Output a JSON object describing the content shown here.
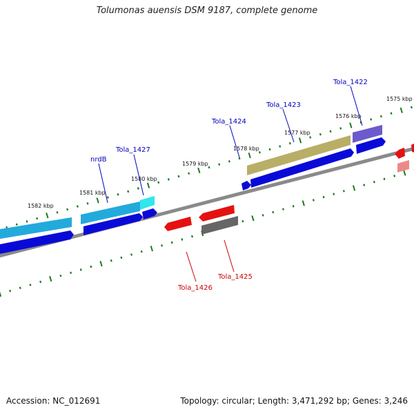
{
  "title": "Tolumonas auensis DSM 9187, complete genome",
  "footer": {
    "accession": "Accession: NC_012691",
    "summary": "Topology: circular; Length: 3,471,292 bp; Genes: 3,246"
  },
  "colors": {
    "forward_label": "#0000bb",
    "reverse_label": "#cc0000",
    "tick": "#1a7a1a",
    "backbone": "#888888"
  },
  "kbp_labels": [
    "1582 kbp",
    "1581 kbp",
    "1580 kbp",
    "1579 kbp",
    "1578 kbp",
    "1577 kbp",
    "1576 kbp",
    "1575 kbp"
  ],
  "forward_genes": [
    {
      "label": "nrdB",
      "feature_color": "#22aadd"
    },
    {
      "label": "Tola_1427",
      "feature_color": "#33ddee"
    },
    {
      "label": "Tola_1424",
      "feature_color": "#0000dd"
    },
    {
      "label": "Tola_1423",
      "feature_color": "#bbb066"
    },
    {
      "label": "Tola_1422",
      "feature_color": "#6655cc"
    }
  ],
  "reverse_genes": [
    {
      "label": "Tola_1426",
      "feature_color": "#ee1111"
    },
    {
      "label": "Tola_1425",
      "feature_color": "#666666"
    }
  ]
}
